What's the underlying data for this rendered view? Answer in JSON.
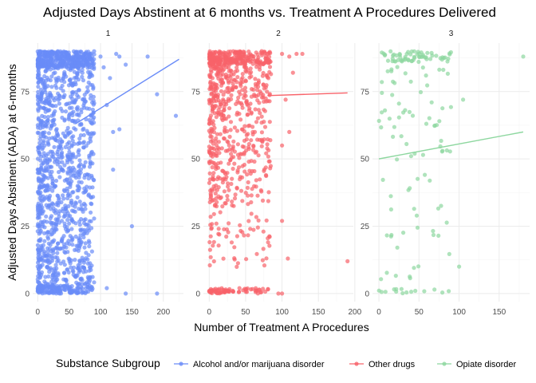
{
  "chart_data": {
    "type": "scatter",
    "title": "Adjusted Days Abstinent at 6 months vs. Treatment A Procedures Delivered",
    "xlabel": "Number of Treatment A Procedures",
    "ylabel": "Adjusted Days Abstinent (ADA) at 6-months",
    "ylim": [
      0,
      90
    ],
    "y_ticks": [
      0,
      25,
      50,
      75
    ],
    "legend_title": "Substance Subgroup",
    "legend_position": "bottom",
    "grid": true,
    "facets": [
      {
        "label": "1",
        "series": "Alcohol and/or marijuana disorder",
        "color": "#6a8cf8",
        "xlim": [
          -8,
          232
        ],
        "x_ticks": [
          0,
          50,
          100,
          150,
          200
        ],
        "n_points": 1600,
        "x_max_typical": 90,
        "trend": [
          [
            60,
            63
          ],
          [
            225,
            87
          ]
        ],
        "outliers": [
          [
            100,
            88
          ],
          [
            105,
            84
          ],
          [
            110,
            70
          ],
          [
            115,
            80
          ],
          [
            120,
            60
          ],
          [
            125,
            89
          ],
          [
            130,
            88
          ],
          [
            140,
            85
          ],
          [
            150,
            25
          ],
          [
            175,
            88
          ],
          [
            190,
            74
          ],
          [
            220,
            66
          ],
          [
            130,
            61
          ],
          [
            120,
            46
          ],
          [
            110,
            2
          ],
          [
            140,
            0
          ],
          [
            190,
            0
          ]
        ]
      },
      {
        "label": "2",
        "series": "Other drugs",
        "color": "#f8636a",
        "xlim": [
          -8,
          198
        ],
        "x_ticks": [
          0,
          50,
          100,
          150,
          200
        ],
        "n_points": 900,
        "x_max_typical": 85,
        "trend": [
          [
            80,
            73.5
          ],
          [
            190,
            74.5
          ]
        ],
        "outliers": [
          [
            100,
            89
          ],
          [
            110,
            88
          ],
          [
            115,
            82
          ],
          [
            120,
            89
          ],
          [
            128,
            89
          ],
          [
            100,
            55
          ],
          [
            105,
            72
          ],
          [
            110,
            60
          ],
          [
            108,
            13
          ],
          [
            100,
            27
          ],
          [
            190,
            12
          ],
          [
            95,
            0
          ],
          [
            100,
            0
          ]
        ]
      },
      {
        "label": "3",
        "series": "Opiate disorder",
        "color": "#8dd79f",
        "xlim": [
          -8,
          188
        ],
        "x_ticks": [
          0,
          50,
          100,
          150
        ],
        "n_points": 160,
        "x_max_typical": 90,
        "trend": [
          [
            0,
            50
          ],
          [
            180,
            60
          ]
        ],
        "outliers": [
          [
            105,
            72
          ],
          [
            100,
            10
          ],
          [
            180,
            88
          ]
        ]
      }
    ]
  }
}
